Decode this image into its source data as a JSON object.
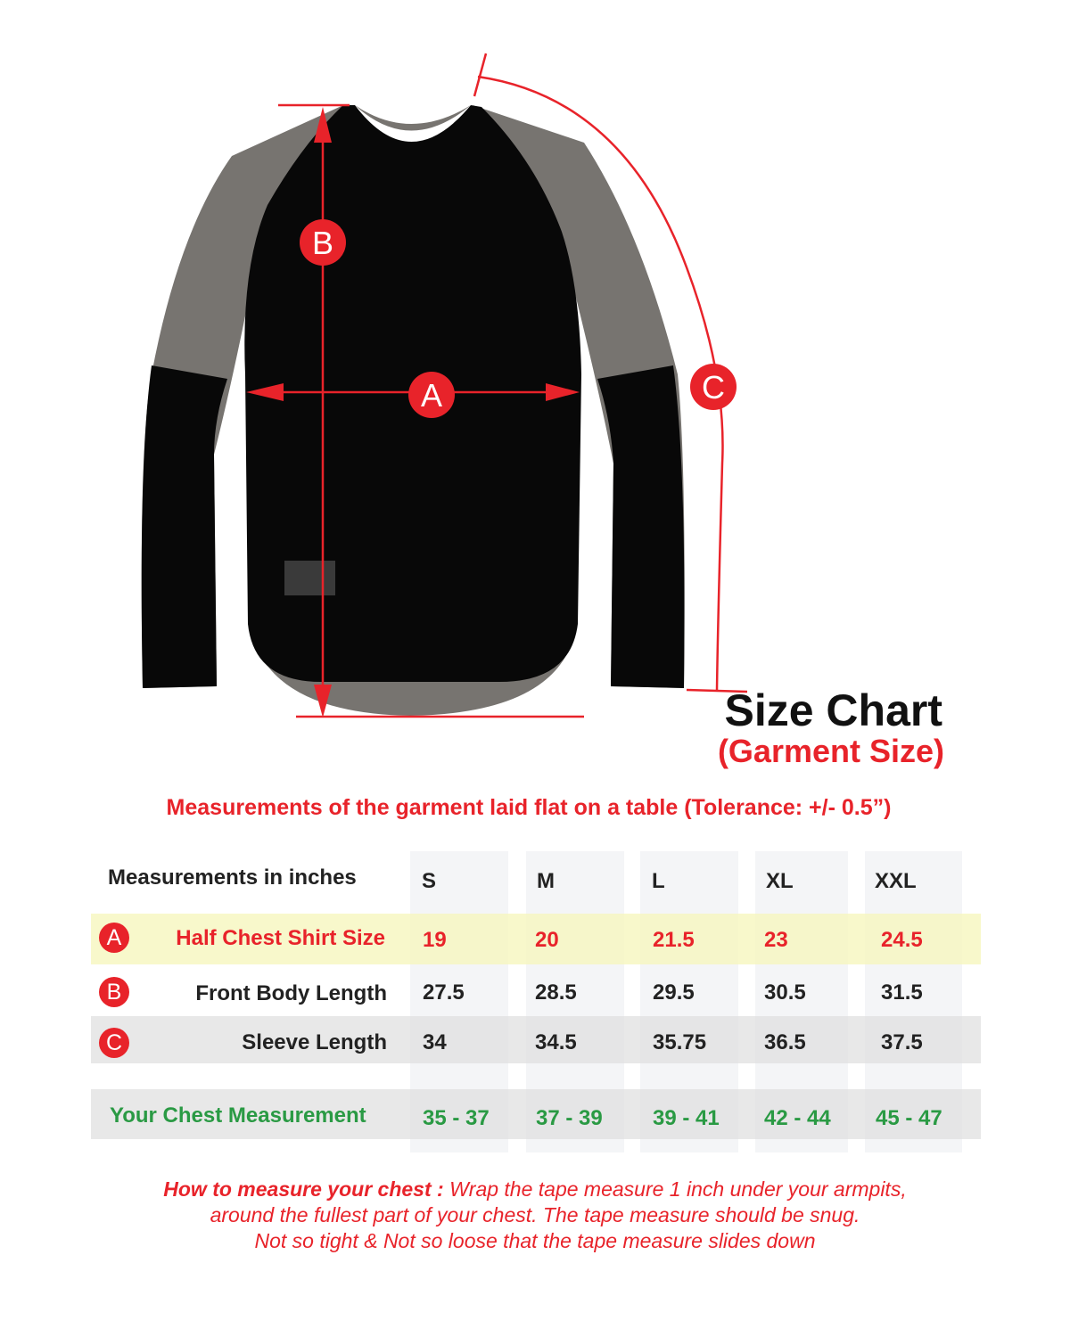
{
  "header": {
    "title": "Size Chart",
    "subtitle": "(Garment Size)"
  },
  "note": "Measurements of the garment laid flat  on a table  (Tolerance: +/- 0.5”)",
  "diagram": {
    "labels": [
      "A",
      "B",
      "C"
    ]
  },
  "table": {
    "corner": "Measurements in inches",
    "sizes": [
      "S",
      "M",
      "L",
      "XL",
      "XXL"
    ],
    "rows": [
      {
        "badge": "A",
        "label": "Half Chest Shirt Size",
        "values": [
          "19",
          "20",
          "21.5",
          "23",
          "24.5"
        ]
      },
      {
        "badge": "B",
        "label": "Front Body Length",
        "values": [
          "27.5",
          "28.5",
          "29.5",
          "30.5",
          "31.5"
        ]
      },
      {
        "badge": "C",
        "label": "Sleeve Length",
        "values": [
          "34",
          "34.5",
          "35.75",
          "36.5",
          "37.5"
        ]
      }
    ],
    "chest": {
      "label": "Your Chest Measurement",
      "values": [
        "35 - 37",
        "37 - 39",
        "39 - 41",
        "42 - 44",
        "45 - 47"
      ]
    }
  },
  "howto": {
    "lead": "How to measure your chest :",
    "line1": " Wrap the tape measure 1 inch under your armpits,",
    "line2": "around the fullest part of your chest. The tape measure should be snug.",
    "line3": "Not so tight & Not so loose that the tape measure slides down"
  },
  "colors": {
    "accent": "#e8232a",
    "green": "#2a9a44",
    "highlight": "#f6f6c8"
  }
}
